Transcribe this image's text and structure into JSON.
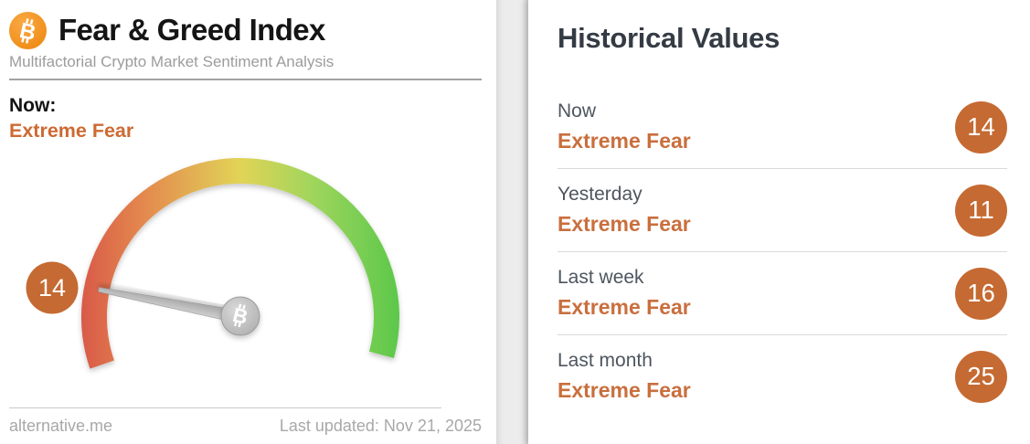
{
  "left_panel": {
    "title": "Fear & Greed Index",
    "subtitle": "Multifactorial Crypto Market Sentiment Analysis",
    "now_label": "Now:",
    "now_sentiment": "Extreme Fear",
    "footer": {
      "source": "alternative.me",
      "last_updated": "Last updated: Nov 21, 2025"
    }
  },
  "right_panel": {
    "title": "Historical Values",
    "rows": [
      {
        "label": "Now",
        "sentiment": "Extreme Fear",
        "value": 14
      },
      {
        "label": "Yesterday",
        "sentiment": "Extreme Fear",
        "value": 11
      },
      {
        "label": "Last week",
        "sentiment": "Extreme Fear",
        "value": 16
      },
      {
        "label": "Last month",
        "sentiment": "Extreme Fear",
        "value": 25
      }
    ]
  },
  "chart_data": {
    "type": "gauge",
    "title": "Fear & Greed Index",
    "value": 14,
    "classification": "Extreme Fear",
    "range": [
      0,
      100
    ],
    "start_angle": 199,
    "end_angle": -15,
    "gradient_stops": [
      {
        "offset": 0,
        "color": "#d85a49"
      },
      {
        "offset": 0.18,
        "color": "#e3854e"
      },
      {
        "offset": 0.5,
        "color": "#e2d457"
      },
      {
        "offset": 0.74,
        "color": "#9cd55c"
      },
      {
        "offset": 1,
        "color": "#5cc84b"
      }
    ],
    "historical": [
      {
        "period": "Now",
        "classification": "Extreme Fear",
        "value": 14
      },
      {
        "period": "Yesterday",
        "classification": "Extreme Fear",
        "value": 11
      },
      {
        "period": "Last week",
        "classification": "Extreme Fear",
        "value": 16
      },
      {
        "period": "Last month",
        "classification": "Extreme Fear",
        "value": 25
      }
    ]
  },
  "colors": {
    "accent_orange_text": "#cd6a33",
    "badge_orange": "#c56a32",
    "bitcoin_orange": "#f7931a",
    "heading_dark": "#343b44",
    "row_label_gray": "#4d565f",
    "subtitle_gray": "#9c9c9c",
    "footer_gray": "#a8a8a8",
    "divider_gray": "#dadada",
    "background_strip": "#ececec",
    "needle_gray": "#b5b5b5"
  }
}
